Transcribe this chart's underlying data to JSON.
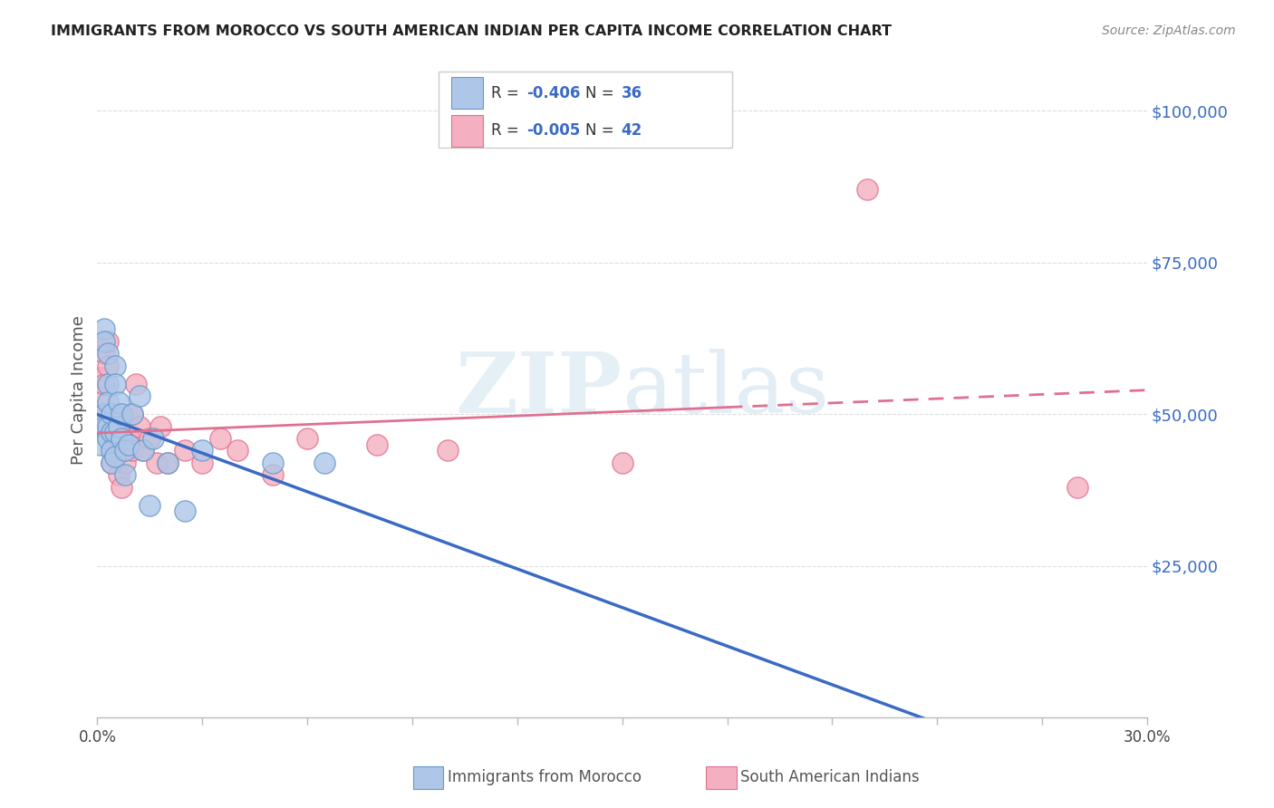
{
  "title": "IMMIGRANTS FROM MOROCCO VS SOUTH AMERICAN INDIAN PER CAPITA INCOME CORRELATION CHART",
  "source": "Source: ZipAtlas.com",
  "ylabel": "Per Capita Income",
  "xlim": [
    0.0,
    0.3
  ],
  "ylim": [
    0,
    108000
  ],
  "watermark": "ZIPatlas",
  "legend_r1": "-0.406",
  "legend_n1": "36",
  "legend_r2": "-0.005",
  "legend_n2": "42",
  "morocco_color": "#aec6e8",
  "sam_indian_color": "#f4afc0",
  "morocco_edge": "#6699cc",
  "sam_indian_edge": "#e07090",
  "trendline_morocco_color": "#3a6bc4",
  "trendline_sam_color": "#e07090",
  "morocco_x": [
    0.001,
    0.001,
    0.002,
    0.002,
    0.002,
    0.002,
    0.003,
    0.003,
    0.003,
    0.003,
    0.003,
    0.004,
    0.004,
    0.004,
    0.004,
    0.005,
    0.005,
    0.005,
    0.005,
    0.006,
    0.006,
    0.007,
    0.007,
    0.008,
    0.008,
    0.009,
    0.01,
    0.012,
    0.013,
    0.015,
    0.016,
    0.02,
    0.025,
    0.03,
    0.05,
    0.065
  ],
  "morocco_y": [
    47000,
    45000,
    64000,
    62000,
    50000,
    48000,
    60000,
    55000,
    52000,
    48000,
    46000,
    50000,
    47000,
    44000,
    42000,
    58000,
    55000,
    47000,
    43000,
    52000,
    48000,
    50000,
    46000,
    44000,
    40000,
    45000,
    50000,
    53000,
    44000,
    35000,
    46000,
    42000,
    34000,
    44000,
    42000,
    42000
  ],
  "sam_x": [
    0.001,
    0.001,
    0.002,
    0.002,
    0.002,
    0.002,
    0.003,
    0.003,
    0.003,
    0.004,
    0.004,
    0.004,
    0.005,
    0.005,
    0.005,
    0.006,
    0.006,
    0.007,
    0.007,
    0.008,
    0.008,
    0.009,
    0.01,
    0.01,
    0.011,
    0.012,
    0.013,
    0.015,
    0.017,
    0.018,
    0.02,
    0.025,
    0.03,
    0.035,
    0.04,
    0.05,
    0.06,
    0.08,
    0.1,
    0.15,
    0.22,
    0.28
  ],
  "sam_y": [
    56000,
    52000,
    60000,
    55000,
    50000,
    48000,
    62000,
    58000,
    48000,
    46000,
    44000,
    42000,
    50000,
    46000,
    44000,
    47000,
    40000,
    45000,
    38000,
    44000,
    42000,
    46000,
    50000,
    44000,
    55000,
    48000,
    44000,
    46000,
    42000,
    48000,
    42000,
    44000,
    42000,
    46000,
    44000,
    40000,
    46000,
    45000,
    44000,
    42000,
    87000,
    38000
  ],
  "background_color": "#ffffff",
  "grid_color": "#dddddd",
  "ytick_color": "#3a6bc4",
  "title_color": "#222222",
  "source_color": "#888888",
  "label_color": "#666666"
}
